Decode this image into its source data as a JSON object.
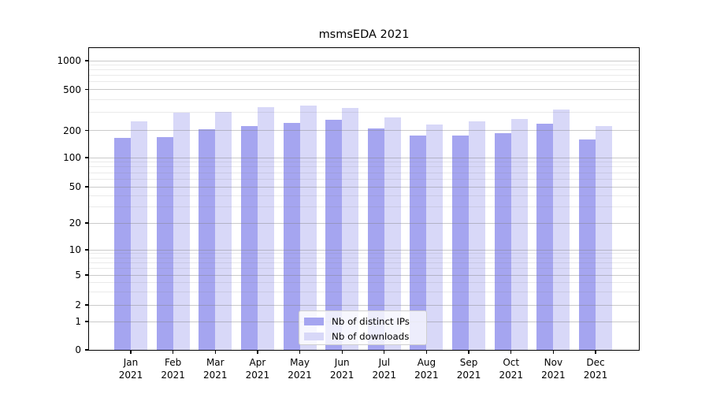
{
  "chart_data": {
    "type": "bar",
    "title": "msmsEDA 2021",
    "categories": [
      "Jan",
      "Feb",
      "Mar",
      "Apr",
      "May",
      "Jun",
      "Jul",
      "Aug",
      "Sep",
      "Oct",
      "Nov",
      "Dec"
    ],
    "x_year": "2021",
    "series": [
      {
        "name": "Nb of distinct IPs",
        "color": "#a5a5f0",
        "values": [
          165,
          168,
          205,
          220,
          237,
          252,
          208,
          174,
          174,
          185,
          234,
          158
        ]
      },
      {
        "name": "Nb of downloads",
        "color": "#d8d8f8",
        "values": [
          247,
          295,
          305,
          338,
          350,
          328,
          268,
          228,
          247,
          256,
          318,
          222
        ]
      }
    ],
    "y_axis": {
      "scale": "log-like with 0 baseline",
      "major_ticks": [
        0,
        1,
        2,
        5,
        10,
        20,
        50,
        100,
        200,
        500,
        1000
      ],
      "minor_ticks": [
        3,
        4,
        6,
        7,
        8,
        9,
        30,
        40,
        60,
        70,
        80,
        90,
        300,
        400,
        600,
        700,
        800,
        900
      ],
      "ylim": [
        0,
        1400
      ]
    },
    "legend": {
      "position": "lower center"
    },
    "grid": true
  }
}
